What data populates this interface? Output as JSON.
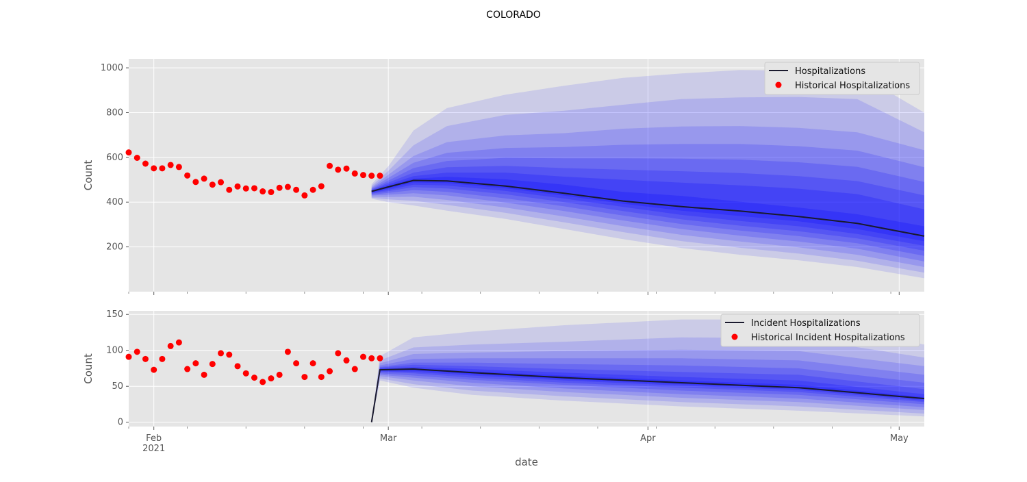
{
  "chart_data": {
    "type": "line",
    "title": "COLORADO",
    "xlabel": "date",
    "x_ticks": [
      "Feb\n2021",
      "Mar",
      "Apr",
      "May"
    ],
    "shared_x_range": [
      "2021-01-29",
      "2021-05-04"
    ],
    "band_color": "#0000ff",
    "line_color": "#1a1a2e",
    "point_color": "#ff0000",
    "grid": true,
    "panels": [
      {
        "name": "hospitalizations",
        "ylabel": "Count",
        "ylim": [
          0,
          1040
        ],
        "y_ticks": [
          200,
          400,
          600,
          800,
          1000
        ],
        "legend_placement": "top-right",
        "legend": [
          "Hospitalizations",
          "Historical Hospitalizations"
        ],
        "historical": {
          "dates": [
            "2021-01-29",
            "2021-01-30",
            "2021-01-31",
            "2021-02-01",
            "2021-02-02",
            "2021-02-03",
            "2021-02-04",
            "2021-02-05",
            "2021-02-06",
            "2021-02-07",
            "2021-02-08",
            "2021-02-09",
            "2021-02-10",
            "2021-02-11",
            "2021-02-12",
            "2021-02-13",
            "2021-02-14",
            "2021-02-15",
            "2021-02-16",
            "2021-02-17",
            "2021-02-18",
            "2021-02-19",
            "2021-02-20",
            "2021-02-21",
            "2021-02-22",
            "2021-02-23",
            "2021-02-24",
            "2021-02-25",
            "2021-02-26",
            "2021-02-27",
            "2021-02-28"
          ],
          "values": [
            622,
            598,
            572,
            551,
            551,
            566,
            557,
            519,
            490,
            505,
            478,
            489,
            455,
            470,
            461,
            462,
            448,
            445,
            464,
            468,
            455,
            430,
            455,
            471,
            562,
            545,
            550,
            528,
            521,
            518,
            518
          ]
        },
        "forecast_points": [
          {
            "date": "2021-02-27",
            "median": 448,
            "lower": [
              415,
              420,
              425,
              430,
              434,
              438,
              441,
              444
            ],
            "upper": [
              480,
              472,
              466,
              462,
              458,
              455,
              452,
              450
            ]
          },
          {
            "date": "2021-03-01",
            "median": 468,
            "lower": [
              400,
              412,
              423,
              433,
              441,
              449,
              455,
              461
            ],
            "upper": [
              560,
              540,
              522,
              508,
              496,
              487,
              479,
              473
            ]
          },
          {
            "date": "2021-03-04",
            "median": 497,
            "lower": [
              385,
              406,
              424,
              440,
              454,
              467,
              478,
              488
            ],
            "upper": [
              720,
              654,
              606,
              576,
              552,
              532,
              516,
              505
            ]
          },
          {
            "date": "2021-03-08",
            "median": 495,
            "lower": [
              362,
              388,
              410,
              430,
              446,
              461,
              474,
              485
            ],
            "upper": [
              820,
              740,
              668,
              620,
              584,
              556,
              532,
              513
            ]
          },
          {
            "date": "2021-03-15",
            "median": 472,
            "lower": [
              325,
              352,
              376,
              398,
              417,
              435,
              450,
              462
            ],
            "upper": [
              880,
              790,
              698,
              642,
              598,
              562,
              532,
              502
            ]
          },
          {
            "date": "2021-03-22",
            "median": 440,
            "lower": [
              280,
              310,
              336,
              360,
              381,
              400,
              416,
              429
            ],
            "upper": [
              920,
              808,
              708,
              646,
              596,
              552,
              514,
              478
            ]
          },
          {
            "date": "2021-03-29",
            "median": 405,
            "lower": [
              235,
              266,
              293,
              318,
              340,
              360,
              379,
              393
            ],
            "upper": [
              955,
              835,
              728,
              656,
              596,
              545,
              500,
              446
            ]
          },
          {
            "date": "2021-04-05",
            "median": 380,
            "lower": [
              195,
              226,
              254,
              280,
              302,
              323,
              343,
              362
            ],
            "upper": [
              975,
              860,
              738,
              660,
              594,
              538,
              487,
              428
            ]
          },
          {
            "date": "2021-04-12",
            "median": 360,
            "lower": [
              165,
              196,
              224,
              250,
              273,
              295,
              316,
              338
            ],
            "upper": [
              990,
              868,
              740,
              660,
              590,
              530,
              475,
              402
            ]
          },
          {
            "date": "2021-04-19",
            "median": 336,
            "lower": [
              140,
              170,
              198,
              224,
              248,
              270,
              292,
              314
            ],
            "upper": [
              988,
              870,
              732,
              650,
              578,
              516,
              460,
              376
            ]
          },
          {
            "date": "2021-04-26",
            "median": 305,
            "lower": [
              110,
              138,
              165,
              192,
              216,
              238,
              258,
              280
            ],
            "upper": [
              975,
              860,
              712,
              630,
              558,
              494,
              436,
              346
            ]
          },
          {
            "date": "2021-05-04",
            "median": 248,
            "lower": [
              60,
              85,
              110,
              135,
              160,
              183,
              205,
              225
            ],
            "upper": [
              800,
              712,
              632,
              556,
              490,
              430,
              368,
              292
            ]
          }
        ]
      },
      {
        "name": "incident-hospitalizations",
        "ylabel": "Count",
        "ylim": [
          -6,
          155
        ],
        "y_ticks": [
          0,
          50,
          100,
          150
        ],
        "legend_placement": "top-right",
        "legend": [
          "Incident Hospitalizations",
          "Historical Incident Hospitalizations"
        ],
        "historical": {
          "dates": [
            "2021-01-29",
            "2021-01-30",
            "2021-01-31",
            "2021-02-01",
            "2021-02-02",
            "2021-02-03",
            "2021-02-04",
            "2021-02-05",
            "2021-02-06",
            "2021-02-07",
            "2021-02-08",
            "2021-02-09",
            "2021-02-10",
            "2021-02-11",
            "2021-02-12",
            "2021-02-13",
            "2021-02-14",
            "2021-02-15",
            "2021-02-16",
            "2021-02-17",
            "2021-02-18",
            "2021-02-19",
            "2021-02-20",
            "2021-02-21",
            "2021-02-22",
            "2021-02-23",
            "2021-02-24",
            "2021-02-25",
            "2021-02-26",
            "2021-02-27",
            "2021-02-28"
          ],
          "values": [
            91,
            98,
            88,
            73,
            88,
            106,
            111,
            74,
            82,
            66,
            81,
            96,
            94,
            78,
            68,
            62,
            56,
            61,
            66,
            98,
            82,
            63,
            82,
            63,
            71,
            96,
            86,
            74,
            91,
            89,
            89
          ]
        },
        "forecast_points": [
          {
            "date": "2021-02-27",
            "median": 0,
            "lower": [
              0,
              0,
              0,
              0,
              0,
              0,
              0,
              0
            ],
            "upper": [
              0,
              0,
              0,
              0,
              0,
              0,
              0,
              0
            ]
          },
          {
            "date": "2021-02-28",
            "median": 73,
            "lower": [
              58,
              61,
              64,
              66,
              68,
              70,
              71,
              72
            ],
            "upper": [
              92,
              86,
              82,
              79,
              77,
              76,
              75,
              74
            ]
          },
          {
            "date": "2021-03-04",
            "median": 74,
            "lower": [
              48,
              53,
              58,
              62,
              65,
              68,
              70,
              72
            ],
            "upper": [
              118,
              104,
              95,
              88,
              83,
              80,
              77,
              75
            ]
          },
          {
            "date": "2021-03-11",
            "median": 69,
            "lower": [
              38,
              44,
              50,
              55,
              59,
              62,
              65,
              67
            ],
            "upper": [
              126,
              108,
              97,
              89,
              83,
              78,
              74,
              71
            ]
          },
          {
            "date": "2021-03-22",
            "median": 62,
            "lower": [
              30,
              36,
              42,
              47,
              52,
              55,
              58,
              60
            ],
            "upper": [
              135,
              112,
              99,
              89,
              81,
              74,
              69,
              65
            ]
          },
          {
            "date": "2021-04-05",
            "median": 55,
            "lower": [
              22,
              28,
              34,
              39,
              44,
              48,
              51,
              53
            ],
            "upper": [
              143,
              118,
              101,
              89,
              79,
              70,
              63,
              58
            ]
          },
          {
            "date": "2021-04-19",
            "median": 48,
            "lower": [
              16,
              22,
              28,
              33,
              38,
              42,
              45,
              47
            ],
            "upper": [
              143,
              117,
              99,
              86,
              75,
              66,
              58,
              52
            ]
          },
          {
            "date": "2021-05-04",
            "median": 33,
            "lower": [
              8,
              12,
              17,
              21,
              25,
              28,
              30,
              32
            ],
            "upper": [
              108,
              90,
              78,
              66,
              55,
              46,
              39,
              35
            ]
          }
        ]
      }
    ]
  }
}
